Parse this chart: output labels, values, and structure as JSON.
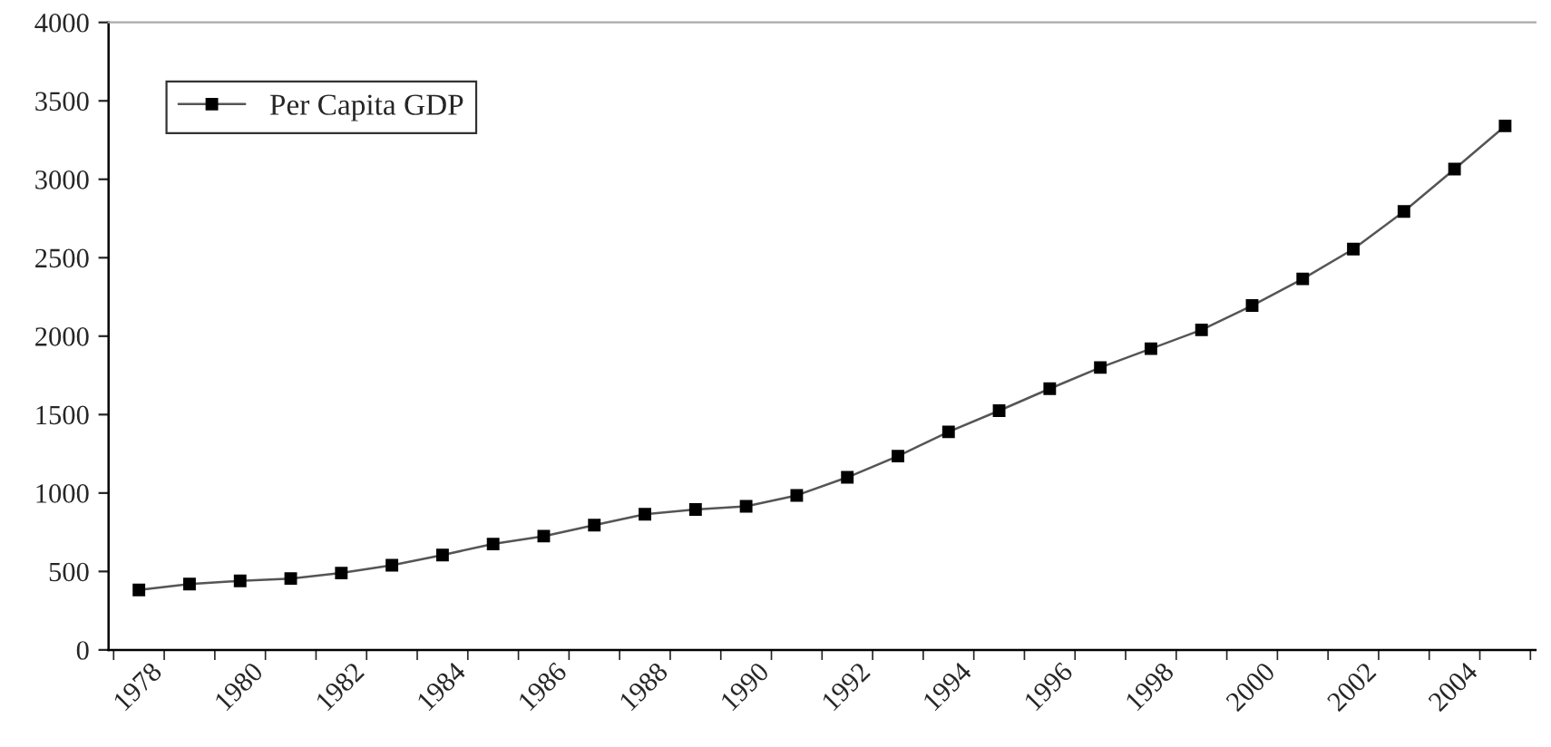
{
  "chart_data": {
    "type": "line",
    "categories": [
      "1978",
      null,
      "1980",
      null,
      "1982",
      null,
      "1984",
      null,
      "1986",
      null,
      "1988",
      null,
      "1990",
      null,
      "1992",
      null,
      "1994",
      null,
      "1996",
      null,
      "1998",
      null,
      "2000",
      null,
      "2002",
      null,
      "2004",
      null
    ],
    "series": [
      {
        "name": "Per Capita GDP",
        "color": "#000000",
        "values": [
          382,
          420,
          440,
          455,
          490,
          540,
          605,
          675,
          725,
          795,
          865,
          895,
          915,
          985,
          1100,
          1235,
          1390,
          1525,
          1665,
          1800,
          1920,
          2040,
          2195,
          2365,
          2555,
          2795,
          3065,
          3340
        ]
      }
    ],
    "ylim": [
      0,
      4000
    ],
    "yticks": [
      0,
      500,
      1000,
      1500,
      2000,
      2500,
      3000,
      3500,
      4000
    ],
    "grid": false,
    "legend": "top left",
    "marker": "square",
    "line_style": "solid"
  }
}
